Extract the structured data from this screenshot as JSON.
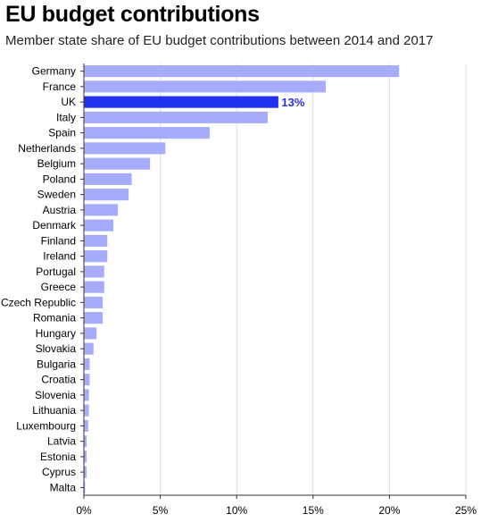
{
  "title": "EU budget contributions",
  "subtitle": "Member state share of EU budget contributions between 2014 and 2017",
  "colors": {
    "bar": "#a6acfa",
    "highlight": "#2233ee",
    "grid": "#dddddd",
    "axis": "#333333"
  },
  "chart_data": {
    "type": "bar",
    "orientation": "horizontal",
    "title": "EU budget contributions",
    "subtitle": "Member state share of EU budget contributions between 2014 and 2017",
    "categories": [
      "Germany",
      "France",
      "UK",
      "Italy",
      "Spain",
      "Netherlands",
      "Belgium",
      "Poland",
      "Sweden",
      "Austria",
      "Denmark",
      "Finland",
      "Ireland",
      "Portugal",
      "Greece",
      "Czech Republic",
      "Romania",
      "Hungary",
      "Slovakia",
      "Bulgaria",
      "Croatia",
      "Slovenia",
      "Lithuania",
      "Luxembourg",
      "Latvia",
      "Estonia",
      "Cyprus",
      "Malta"
    ],
    "values": [
      20.6,
      15.8,
      12.7,
      12.0,
      8.2,
      5.3,
      4.3,
      3.1,
      2.9,
      2.2,
      1.9,
      1.5,
      1.5,
      1.3,
      1.3,
      1.2,
      1.2,
      0.8,
      0.6,
      0.35,
      0.35,
      0.3,
      0.3,
      0.25,
      0.15,
      0.15,
      0.15,
      0.05
    ],
    "highlight": {
      "category": "UK",
      "label": "13%"
    },
    "xlim": [
      0,
      25
    ],
    "xticks": [
      0,
      5,
      10,
      15,
      20,
      25
    ],
    "xtick_labels": [
      "0%",
      "5%",
      "10%",
      "15%",
      "20%",
      "25%"
    ],
    "grid": true,
    "xlabel": "",
    "ylabel": ""
  }
}
